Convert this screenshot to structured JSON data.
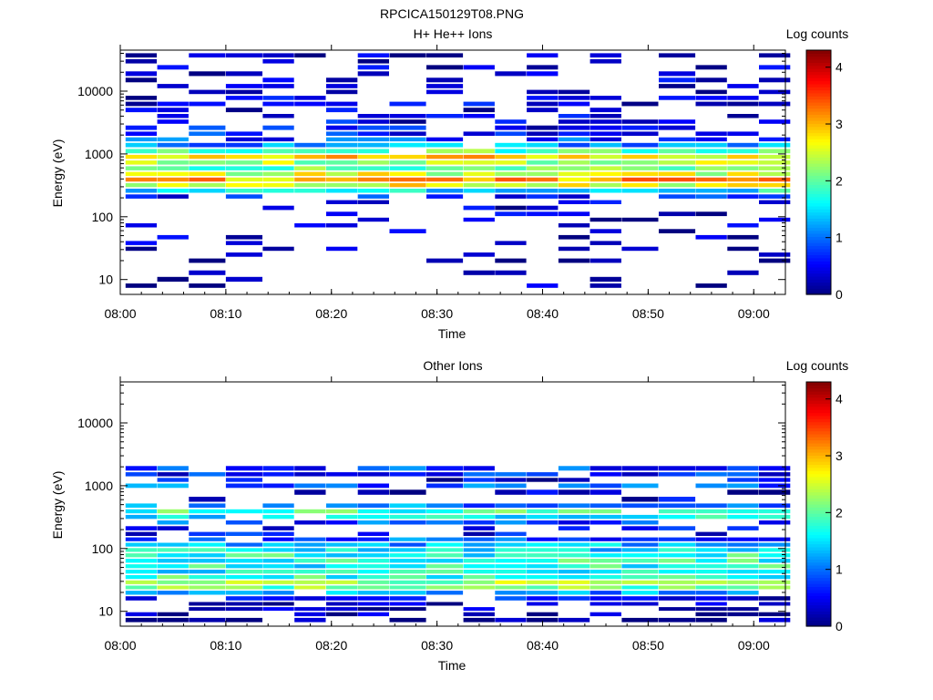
{
  "figure": {
    "title": "RPCICA150129T08.PNG"
  },
  "chart_data": [
    {
      "type": "heatmap",
      "title": "H+ He++ Ions",
      "xlabel": "Time",
      "ylabel": "Energy (eV)",
      "colorbar_label": "Log counts",
      "xticks": [
        "08:00",
        "08:10",
        "08:20",
        "08:30",
        "08:40",
        "08:50",
        "09:00"
      ],
      "xlim": [
        "08:00",
        "09:03"
      ],
      "yticks": [
        "10",
        "100",
        "1000",
        "10000"
      ],
      "ylim": [
        5.8,
        45000
      ],
      "y_scale": "log",
      "colorbar_ticks": [
        "0",
        "1",
        "2",
        "3",
        "4"
      ],
      "color_range": [
        0,
        4.3
      ],
      "colormap": "jet",
      "time_bins": [
        "08:02",
        "08:05",
        "08:08",
        "08:12",
        "08:15",
        "08:18",
        "08:21",
        "08:24",
        "08:27",
        "08:31",
        "08:34",
        "08:37",
        "08:40",
        "08:43",
        "08:46",
        "08:49",
        "08:53",
        "08:56",
        "08:59",
        "09:02"
      ],
      "energy_bands": [
        {
          "energy": 37000,
          "level": 0.2,
          "duty": 0.55
        },
        {
          "energy": 30000,
          "level": 0.2,
          "duty": 0.45
        },
        {
          "energy": 24000,
          "level": 0.25,
          "duty": 0.4
        },
        {
          "energy": 19000,
          "level": 0.2,
          "duty": 0.4
        },
        {
          "energy": 15000,
          "level": 0.25,
          "duty": 0.45
        },
        {
          "energy": 12000,
          "level": 0.3,
          "duty": 0.5
        },
        {
          "energy": 9700,
          "level": 0.3,
          "duty": 0.5
        },
        {
          "energy": 7800,
          "level": 0.3,
          "duty": 0.45
        },
        {
          "energy": 6300,
          "level": 0.35,
          "duty": 0.45
        },
        {
          "energy": 5000,
          "level": 0.4,
          "duty": 0.4
        },
        {
          "energy": 4000,
          "level": 0.4,
          "duty": 0.45
        },
        {
          "energy": 3300,
          "level": 0.45,
          "duty": 0.5
        },
        {
          "energy": 2600,
          "level": 0.5,
          "duty": 0.55
        },
        {
          "energy": 2100,
          "level": 0.6,
          "duty": 0.65
        },
        {
          "energy": 1700,
          "level": 0.8,
          "duty": 0.8
        },
        {
          "energy": 1400,
          "level": 1.2,
          "duty": 0.9
        },
        {
          "energy": 1100,
          "level": 2.0,
          "duty": 0.95
        },
        {
          "energy": 900,
          "level": 2.8,
          "duty": 1.0
        },
        {
          "energy": 730,
          "level": 2.3,
          "duty": 1.0
        },
        {
          "energy": 590,
          "level": 2.1,
          "duty": 1.0
        },
        {
          "energy": 480,
          "level": 2.5,
          "duty": 1.0
        },
        {
          "energy": 390,
          "level": 3.0,
          "duty": 1.0
        },
        {
          "energy": 320,
          "level": 2.6,
          "duty": 1.0
        },
        {
          "energy": 260,
          "level": 1.6,
          "duty": 0.95
        },
        {
          "energy": 210,
          "level": 0.7,
          "duty": 0.7
        },
        {
          "energy": 170,
          "level": 0.4,
          "duty": 0.4
        },
        {
          "energy": 140,
          "level": 0.3,
          "duty": 0.3
        },
        {
          "energy": 110,
          "level": 0.25,
          "duty": 0.3
        },
        {
          "energy": 90,
          "level": 0.2,
          "duty": 0.3
        },
        {
          "energy": 73,
          "level": 0.2,
          "duty": 0.25
        },
        {
          "energy": 59,
          "level": 0.2,
          "duty": 0.25
        },
        {
          "energy": 47,
          "level": 0.2,
          "duty": 0.3
        },
        {
          "energy": 38,
          "level": 0.3,
          "duty": 0.3
        },
        {
          "energy": 31,
          "level": 0.2,
          "duty": 0.25
        },
        {
          "energy": 25,
          "level": 0.2,
          "duty": 0.25
        },
        {
          "energy": 20,
          "level": 0.1,
          "duty": 0.15
        },
        {
          "energy": 16,
          "level": 0.1,
          "duty": 0.1
        },
        {
          "energy": 13,
          "level": 0.1,
          "duty": 0.1
        },
        {
          "energy": 10,
          "level": 0.1,
          "duty": 0.12
        },
        {
          "energy": 8,
          "level": 0.1,
          "duty": 0.12
        }
      ]
    },
    {
      "type": "heatmap",
      "title": "Other Ions",
      "xlabel": "Time",
      "ylabel": "Energy (eV)",
      "colorbar_label": "Log counts",
      "xticks": [
        "08:00",
        "08:10",
        "08:20",
        "08:30",
        "08:40",
        "08:50",
        "09:00"
      ],
      "xlim": [
        "08:00",
        "09:03"
      ],
      "yticks": [
        "10",
        "100",
        "1000",
        "10000"
      ],
      "ylim": [
        5.8,
        45000
      ],
      "y_scale": "log",
      "colorbar_ticks": [
        "0",
        "1",
        "2",
        "3",
        "4"
      ],
      "color_range": [
        0,
        4.3
      ],
      "colormap": "jet",
      "time_bins": [
        "08:02",
        "08:05",
        "08:08",
        "08:12",
        "08:15",
        "08:18",
        "08:21",
        "08:24",
        "08:27",
        "08:31",
        "08:34",
        "08:37",
        "08:40",
        "08:43",
        "08:46",
        "08:49",
        "08:53",
        "08:56",
        "08:59",
        "09:02"
      ],
      "energy_bands": [
        {
          "energy": 1900,
          "level": 0.8,
          "duty": 0.85
        },
        {
          "energy": 1500,
          "level": 0.6,
          "duty": 0.75
        },
        {
          "energy": 1250,
          "level": 0.4,
          "duty": 0.55
        },
        {
          "energy": 1000,
          "level": 0.9,
          "duty": 0.85
        },
        {
          "energy": 800,
          "level": 0.2,
          "duty": 0.3
        },
        {
          "energy": 600,
          "level": 0.3,
          "duty": 0.4
        },
        {
          "energy": 480,
          "level": 1.0,
          "duty": 0.85
        },
        {
          "energy": 390,
          "level": 1.9,
          "duty": 0.9
        },
        {
          "energy": 320,
          "level": 1.6,
          "duty": 0.9
        },
        {
          "energy": 260,
          "level": 0.8,
          "duty": 0.75
        },
        {
          "energy": 210,
          "level": 0.4,
          "duty": 0.5
        },
        {
          "energy": 170,
          "level": 0.5,
          "duty": 0.6
        },
        {
          "energy": 140,
          "level": 0.9,
          "duty": 0.8
        },
        {
          "energy": 115,
          "level": 1.3,
          "duty": 0.95
        },
        {
          "energy": 95,
          "level": 1.5,
          "duty": 1.0
        },
        {
          "energy": 78,
          "level": 1.7,
          "duty": 1.0
        },
        {
          "energy": 64,
          "level": 1.8,
          "duty": 1.0
        },
        {
          "energy": 52,
          "level": 1.7,
          "duty": 1.0
        },
        {
          "energy": 43,
          "level": 1.6,
          "duty": 1.0
        },
        {
          "energy": 35,
          "level": 1.8,
          "duty": 1.0
        },
        {
          "energy": 29,
          "level": 2.3,
          "duty": 1.0
        },
        {
          "energy": 24,
          "level": 2.1,
          "duty": 1.0
        },
        {
          "energy": 20,
          "level": 1.2,
          "duty": 0.9
        },
        {
          "energy": 16,
          "level": 0.5,
          "duty": 0.7
        },
        {
          "energy": 13,
          "level": 0.2,
          "duty": 0.5
        },
        {
          "energy": 11,
          "level": 0.1,
          "duty": 0.55
        },
        {
          "energy": 9,
          "level": 0.1,
          "duty": 0.6
        },
        {
          "energy": 7.3,
          "level": 0.1,
          "duty": 0.6
        }
      ]
    }
  ]
}
